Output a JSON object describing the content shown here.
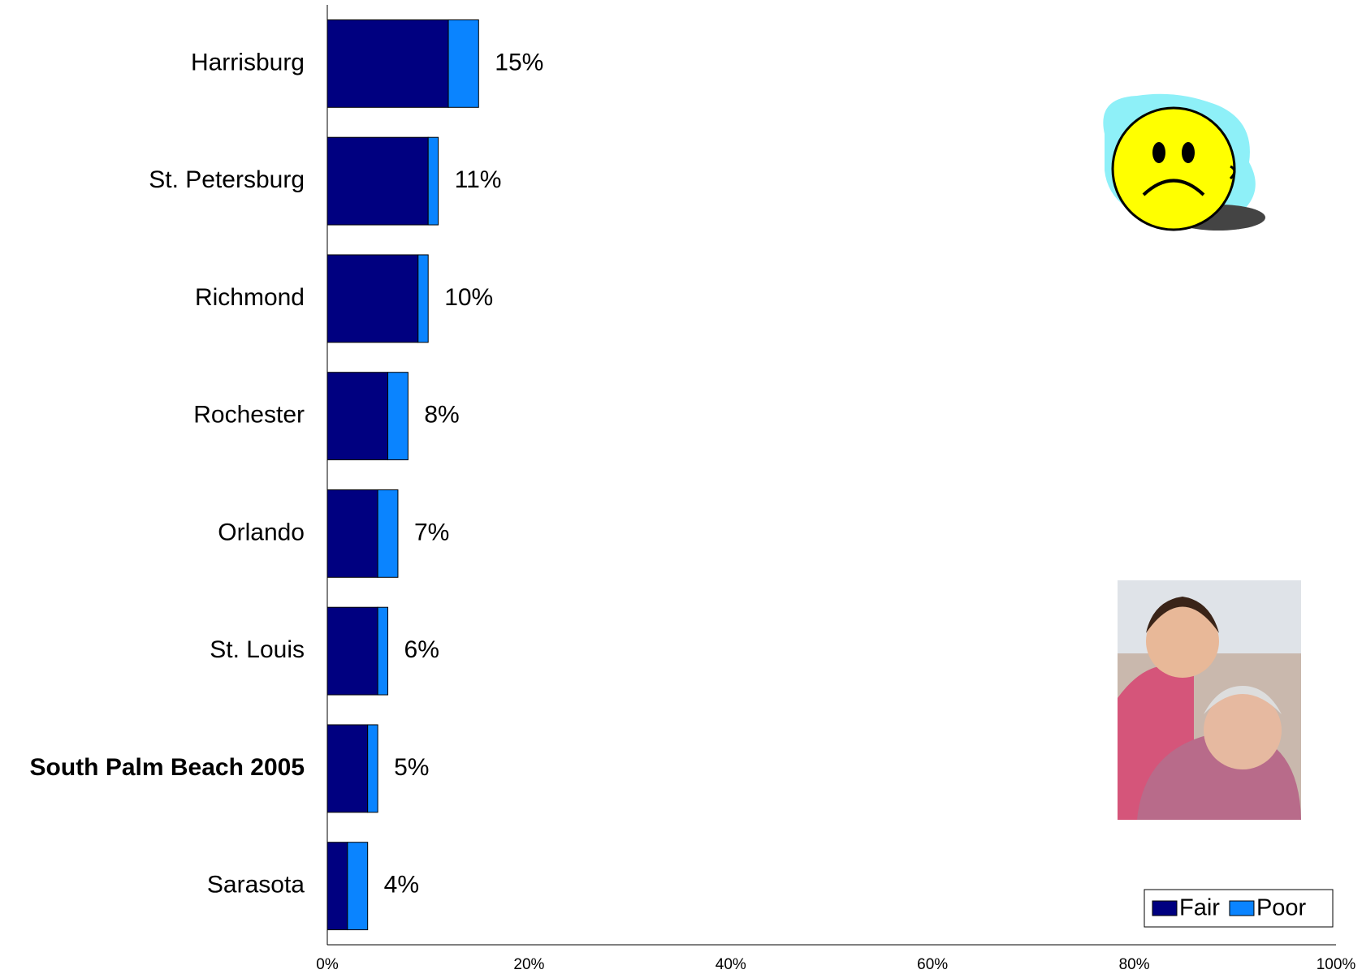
{
  "chart_data": {
    "type": "stacked-bar-horizontal",
    "categories": [
      "Harrisburg",
      "St. Petersburg",
      "Richmond",
      "Rochester",
      "Orlando",
      "St. Louis",
      "South Palm Beach 2005",
      "Sarasota"
    ],
    "category_colors": [
      null,
      null,
      null,
      null,
      null,
      null,
      "#ff0000",
      null
    ],
    "series": [
      {
        "name": "Fair",
        "color": "#000080",
        "values": [
          12,
          10,
          9,
          6,
          5,
          5,
          4,
          2
        ]
      },
      {
        "name": "Poor",
        "color": "#0a84ff",
        "values": [
          3,
          1,
          1,
          2,
          2,
          1,
          1,
          2
        ]
      }
    ],
    "totals": {
      "values": [
        15,
        11,
        10,
        8,
        7,
        6,
        5,
        4
      ],
      "value_labels": [
        "15%",
        "11%",
        "10%",
        "8%",
        "7%",
        "6%",
        "5%",
        "4%"
      ]
    },
    "xlim": [
      0,
      100
    ],
    "xticks": [
      {
        "value": 0,
        "label": "0%"
      },
      {
        "value": 20,
        "label": "20%"
      },
      {
        "value": 40,
        "label": "40%"
      },
      {
        "value": 60,
        "label": "60%"
      },
      {
        "value": 80,
        "label": "80%"
      },
      {
        "value": 100,
        "label": "100%"
      }
    ],
    "legend": "bottom-right"
  }
}
